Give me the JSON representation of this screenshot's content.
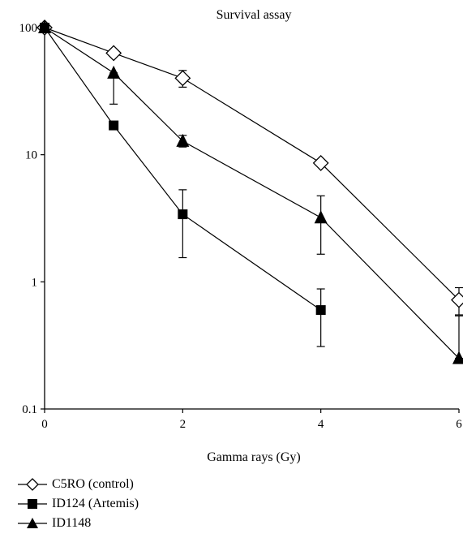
{
  "chart_data": {
    "type": "line",
    "title": "Survival assay",
    "xlabel": "Gamma rays (Gy)",
    "ylabel": "",
    "xlim": [
      0,
      6
    ],
    "ylim": [
      0.1,
      100
    ],
    "y_scale": "log",
    "x_ticks": [
      0,
      2,
      4,
      6
    ],
    "x_tick_labels": [
      "0",
      "2",
      "4",
      "6"
    ],
    "y_ticks": [
      0.1,
      1,
      10,
      100
    ],
    "y_tick_labels": [
      "0.1",
      "1",
      "10",
      "100"
    ],
    "grid": false,
    "legend_position": "bottom-left",
    "series": [
      {
        "name": "C5RO (control)",
        "marker": "diamond-open",
        "x": [
          0,
          1,
          2,
          4,
          6
        ],
        "y": [
          100,
          63,
          40,
          8.6,
          0.72
        ],
        "y_err_low": [
          100,
          63,
          34,
          8.6,
          0.55
        ],
        "y_err_high": [
          100,
          63,
          46,
          8.6,
          0.9
        ]
      },
      {
        "name": "ID124 (Artemis)",
        "marker": "square-filled",
        "x": [
          0,
          1,
          2,
          4
        ],
        "y": [
          100,
          17,
          3.4,
          0.6
        ],
        "y_err_low": [
          100,
          17,
          1.55,
          0.31
        ],
        "y_err_high": [
          100,
          17,
          5.3,
          0.88
        ]
      },
      {
        "name": "ID1148",
        "marker": "triangle-filled",
        "x": [
          0,
          1,
          2,
          4,
          6
        ],
        "y": [
          100,
          44,
          12.8,
          3.2,
          0.25
        ],
        "y_err_low": [
          100,
          25,
          11.5,
          1.65,
          0.25
        ],
        "y_err_high": [
          100,
          44,
          14.2,
          4.75,
          0.54
        ]
      }
    ]
  }
}
